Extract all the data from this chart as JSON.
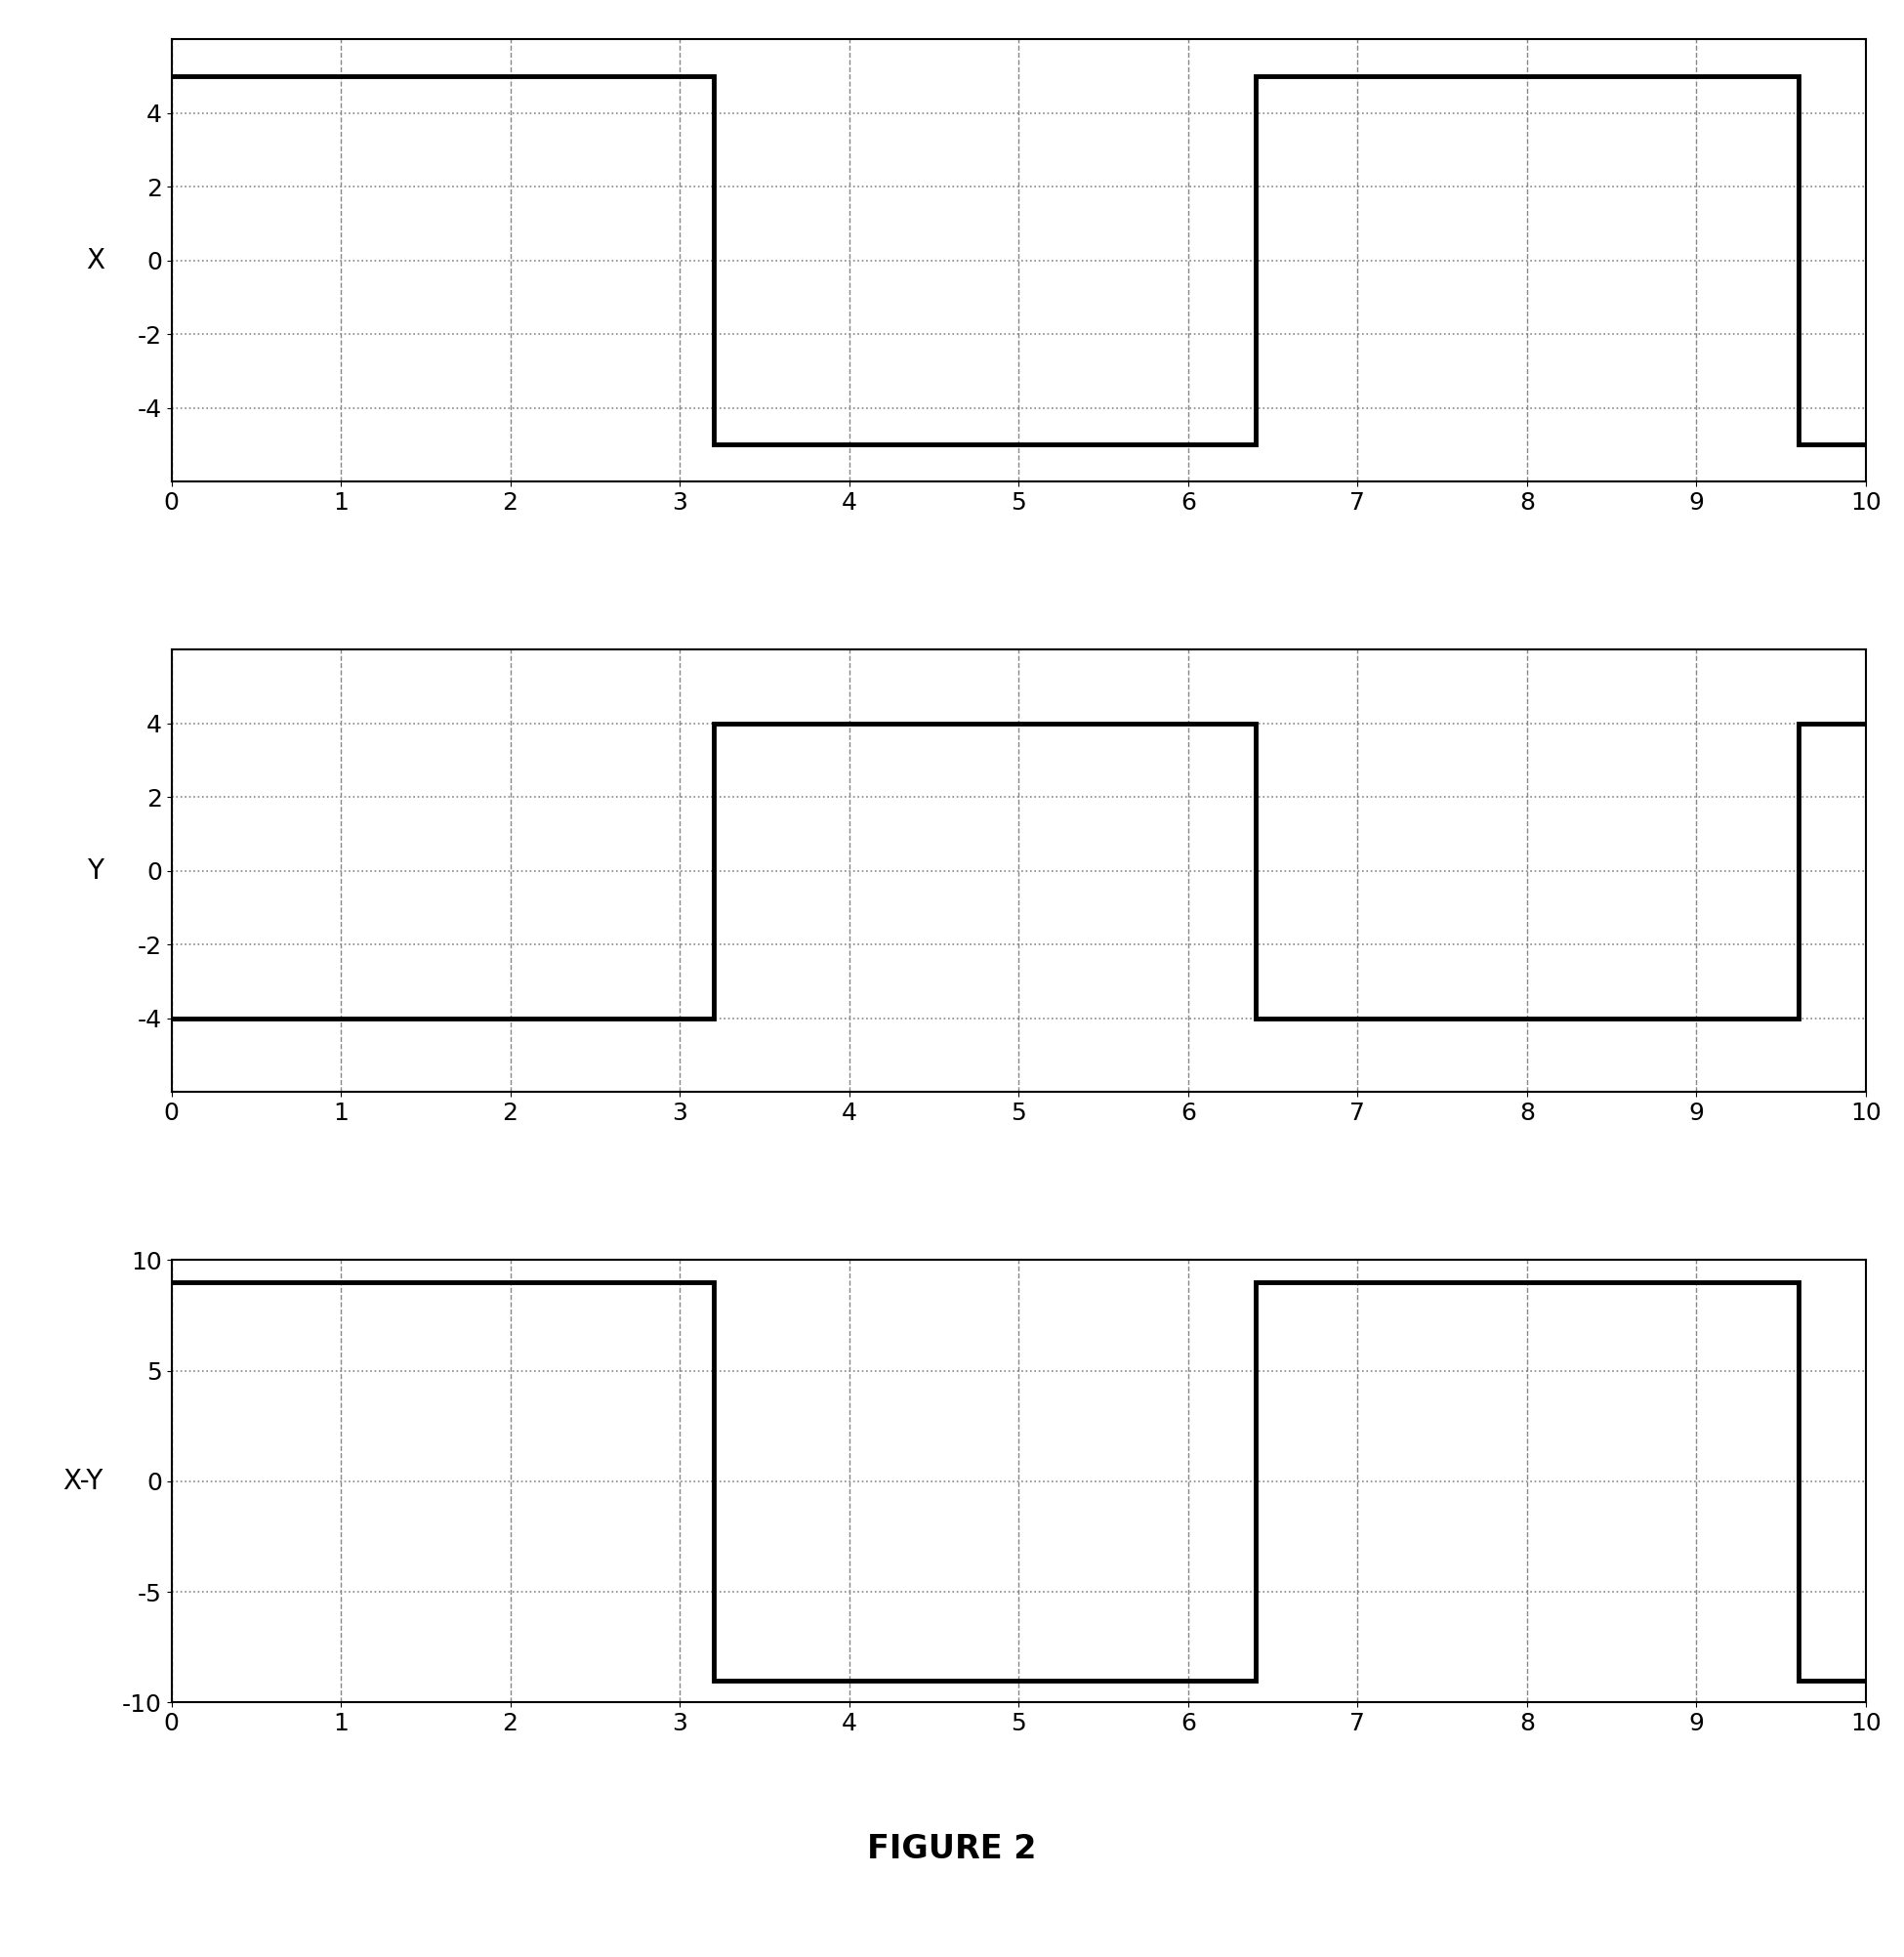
{
  "title": "FIGURE 2",
  "subplot_labels": [
    "X",
    "Y",
    "X-Y"
  ],
  "xlim": [
    0,
    10
  ],
  "x_ticks": [
    0,
    1,
    2,
    3,
    4,
    5,
    6,
    7,
    8,
    9,
    10
  ],
  "subplot1": {
    "ylim": [
      -6,
      6
    ],
    "yticks": [
      -4,
      -2,
      0,
      2,
      4
    ],
    "ytick_labels": [
      "-4",
      "-2",
      "0",
      "2",
      "4"
    ],
    "high": 5,
    "low": -5,
    "transitions": [
      0,
      3.2,
      6.4,
      9.6,
      10
    ]
  },
  "subplot2": {
    "ylim": [
      -6,
      6
    ],
    "yticks": [
      -4,
      -2,
      0,
      2,
      4
    ],
    "ytick_labels": [
      "-4",
      "-2",
      "0",
      "2",
      "4"
    ],
    "high": 4,
    "low": -4,
    "transitions": [
      0,
      3.2,
      6.4,
      9.6,
      10
    ]
  },
  "subplot3": {
    "ylim": [
      -10,
      10
    ],
    "yticks": [
      -10,
      -5,
      0,
      5,
      10
    ],
    "ytick_labels": [
      "-10",
      "-5",
      "0",
      "5",
      "10"
    ],
    "high": 9,
    "low": -9,
    "transitions": [
      0,
      3.2,
      6.4,
      9.6,
      10
    ]
  },
  "line_color": "#000000",
  "line_width": 3.5,
  "grid_dash_color": "#888888",
  "grid_dot_color": "#888888",
  "background_color": "#ffffff",
  "figure_caption_fontsize": 24,
  "ylabel_fontsize": 20,
  "tick_fontsize": 18,
  "spine_linewidth": 1.5
}
